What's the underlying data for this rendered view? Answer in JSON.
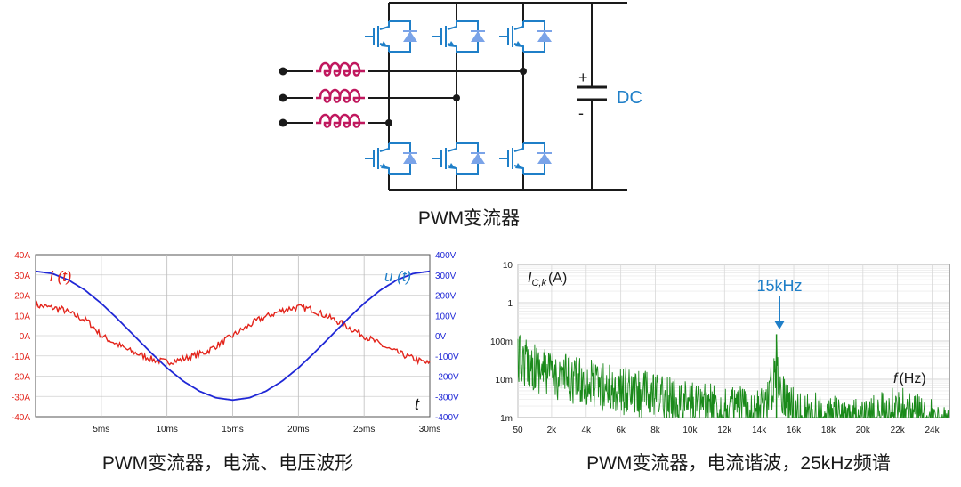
{
  "circuit": {
    "caption": "PWM变流器",
    "dc_label": "DC",
    "plus": "+",
    "minus": "-",
    "colors": {
      "wire": "#1a1a1a",
      "igbt": "#1f7fc8",
      "diode": "#7aa3e8",
      "inductor": "#c0185e",
      "dc": "#1f7fc8"
    }
  },
  "chart_data": [
    {
      "type": "line",
      "caption": "PWM变流器，电流、电压波形",
      "x_ticks": [
        "5ms",
        "10ms",
        "15ms",
        "20ms",
        "25ms",
        "30ms"
      ],
      "x_values": [
        5,
        10,
        15,
        20,
        25,
        30
      ],
      "xlim": [
        0,
        30
      ],
      "left_axis": {
        "ticks": [
          "40A",
          "30A",
          "20A",
          "10A",
          "0A",
          "-10A",
          "-20A",
          "-30A",
          "-40A"
        ],
        "ylim": [
          -40,
          40
        ],
        "color": "#e3241b"
      },
      "right_axis": {
        "ticks": [
          "400V",
          "300V",
          "200V",
          "100V",
          "0V",
          "-100V",
          "-200V",
          "-300V",
          "-400V"
        ],
        "ylim": [
          -400,
          400
        ],
        "color": "#1f27d6"
      },
      "series": [
        {
          "name": "i (t)",
          "axis": "left",
          "color": "#e3241b",
          "x": [
            0,
            2,
            4,
            5,
            7,
            9,
            10,
            11,
            13,
            15,
            17,
            19,
            20,
            21,
            23,
            25,
            27,
            29,
            30
          ],
          "y": [
            15,
            13,
            7,
            0,
            -7,
            -12,
            -13,
            -12,
            -8,
            0,
            8,
            13,
            14,
            13,
            7,
            0,
            -7,
            -12,
            -14
          ]
        },
        {
          "name": "u (t)",
          "axis": "right",
          "color": "#1f27d6",
          "x": [
            0,
            1.25,
            2.5,
            3.75,
            5,
            6.25,
            7.5,
            8.75,
            10,
            11.25,
            12.5,
            13.75,
            15,
            16.25,
            17.5,
            18.75,
            20,
            21.25,
            22.5,
            23.75,
            25,
            26.25,
            27.5,
            28.75,
            30
          ],
          "y": [
            318,
            307,
            275,
            225,
            159,
            82,
            0,
            -82,
            -159,
            -225,
            -275,
            -307,
            -318,
            -307,
            -275,
            -225,
            -159,
            -82,
            0,
            82,
            159,
            225,
            275,
            307,
            318
          ]
        }
      ],
      "corner_label": "t",
      "grid": true
    },
    {
      "type": "line",
      "caption": "PWM变流器，电流谐波，25kHz频谱",
      "x_ticks": [
        "50",
        "2k",
        "4k",
        "6k",
        "8k",
        "10k",
        "12k",
        "14k",
        "16k",
        "18k",
        "20k",
        "22k",
        "24k"
      ],
      "y_ticks": [
        "10",
        "1",
        "100m",
        "10m",
        "1m"
      ],
      "xlim": [
        50,
        25000
      ],
      "ylim": [
        0.001,
        10
      ],
      "log_y": true,
      "ylabel": "I C,k (A)",
      "ylabel_main": "I",
      "ylabel_sub": "C,k",
      "ylabel_unit": "(A)",
      "xlabel": "f (Hz)",
      "xlabel_main": "f",
      "xlabel_unit": "(Hz)",
      "annotation": "15kHz",
      "annotation_x": 15000,
      "annotation_y": 0.15,
      "series": [
        {
          "color": "#1a8a1a",
          "envelope_x": [
            50,
            2000,
            4000,
            6000,
            8000,
            10000,
            12000,
            14000,
            14800,
            15000,
            15200,
            16000,
            18000,
            20000,
            22000,
            24000,
            25000
          ],
          "envelope_y": [
            0.15,
            0.06,
            0.035,
            0.022,
            0.015,
            0.01,
            0.007,
            0.006,
            0.03,
            0.15,
            0.03,
            0.006,
            0.004,
            0.003,
            0.007,
            0.003,
            0.002
          ]
        }
      ],
      "grid": true
    }
  ]
}
